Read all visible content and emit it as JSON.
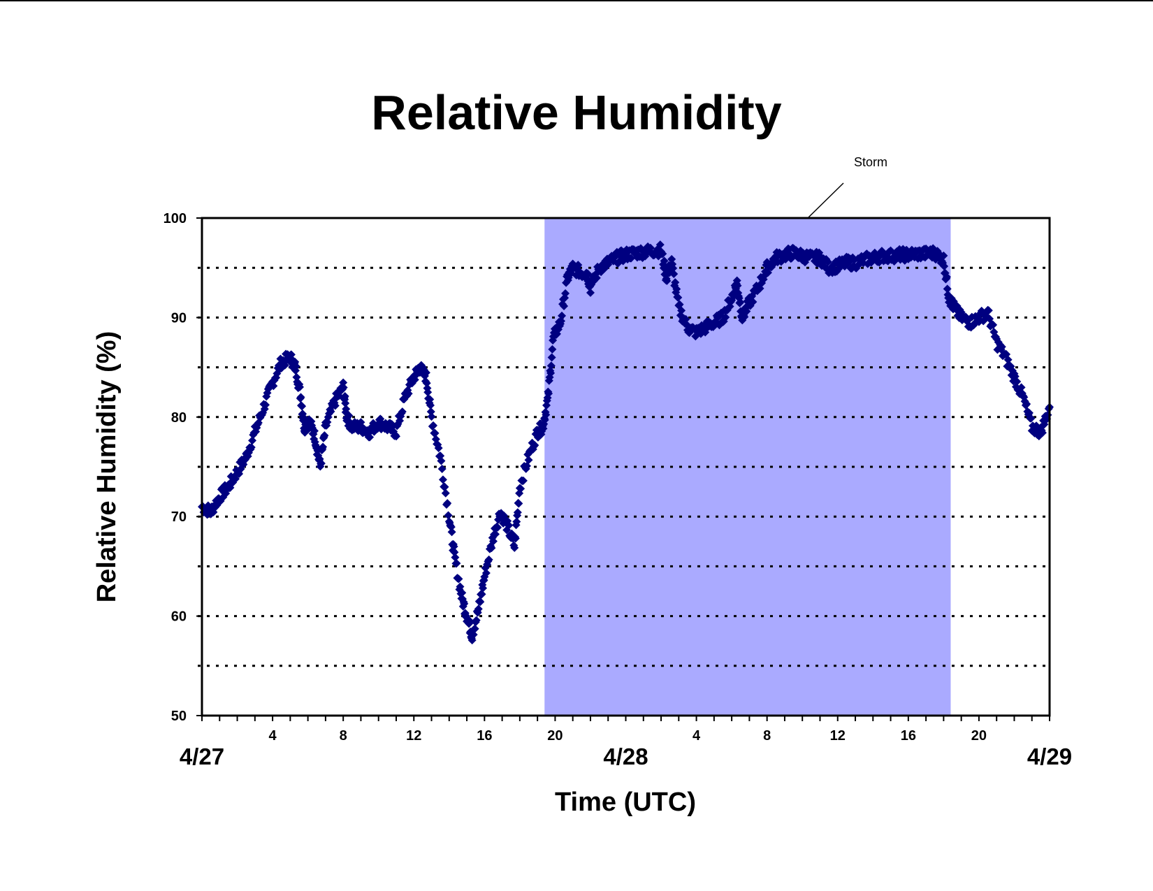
{
  "chart_data": {
    "type": "scatter",
    "title": "Relative Humidity",
    "xlabel": "Time (UTC)",
    "ylabel": "Relative Humidity (%)",
    "ylim": [
      50,
      100
    ],
    "xlim_hours": [
      0,
      48
    ],
    "yticks": [
      50,
      60,
      70,
      80,
      90,
      100
    ],
    "grid": "dotted horizontal every 5",
    "x_tick_labels": [
      {
        "hour": 4,
        "label": "4"
      },
      {
        "hour": 8,
        "label": "8"
      },
      {
        "hour": 12,
        "label": "12"
      },
      {
        "hour": 16,
        "label": "16"
      },
      {
        "hour": 20,
        "label": "20"
      },
      {
        "hour": 28,
        "label": "4"
      },
      {
        "hour": 32,
        "label": "8"
      },
      {
        "hour": 36,
        "label": "12"
      },
      {
        "hour": 40,
        "label": "16"
      },
      {
        "hour": 44,
        "label": "20"
      }
    ],
    "date_labels": [
      {
        "hour": 0,
        "label": "4/27"
      },
      {
        "hour": 24,
        "label": "4/28"
      },
      {
        "hour": 48,
        "label": "4/29"
      }
    ],
    "shaded_region": {
      "label": "Storm",
      "start_hour": 19.4,
      "end_hour": 42.4,
      "color": "#aaaaff"
    },
    "annotation": {
      "text": "Storm"
    },
    "series": [
      {
        "color": "#000080",
        "marker": "diamond",
        "x_hours": [
          0,
          0.5,
          1,
          1.5,
          2,
          2.5,
          3,
          3.5,
          4,
          4.5,
          5,
          5.3,
          5.6,
          5.8,
          6.1,
          6.4,
          6.7,
          7,
          7.5,
          8,
          8.2,
          8.5,
          9,
          9.5,
          10,
          10.5,
          11,
          11.5,
          12,
          12.3,
          12.7,
          13,
          13.5,
          14,
          14.3,
          14.7,
          15,
          15.3,
          15.7,
          16,
          16.5,
          16.9,
          17.3,
          17.7,
          18,
          18.5,
          19,
          19.3,
          19.6,
          19.9,
          20.3,
          20.7,
          21,
          21.5,
          21.8,
          22,
          22.5,
          23,
          23.5,
          24,
          24.5,
          25,
          25.5,
          26,
          26.3,
          26.6,
          27,
          27.5,
          28,
          28.5,
          29,
          29.5,
          30,
          30.3,
          30.6,
          31,
          31.5,
          32,
          32.5,
          33,
          33.5,
          34,
          34.5,
          35,
          35.5,
          36,
          36.5,
          37,
          37.5,
          38,
          38.5,
          39,
          39.5,
          40,
          40.5,
          41,
          41.5,
          42,
          42.3,
          42.6,
          43,
          43.5,
          44,
          44.5,
          45,
          45.5,
          46,
          46.5,
          47,
          47.5,
          48
        ],
        "y": [
          71,
          70.5,
          72,
          73,
          74.5,
          76,
          78.5,
          81,
          83.5,
          85.5,
          86,
          85,
          82,
          79,
          79.5,
          78,
          75,
          79,
          81.5,
          83,
          80,
          79,
          79,
          78.5,
          79.5,
          79,
          78.5,
          82,
          84,
          85,
          84,
          80,
          76,
          70,
          66,
          62,
          60,
          58,
          61,
          64,
          68,
          70.5,
          69,
          67,
          73,
          76,
          78.5,
          79,
          82,
          88,
          89.5,
          94,
          95,
          94.5,
          94.5,
          93,
          95,
          95.5,
          96,
          96.3,
          96.5,
          96.6,
          96.7,
          96.8,
          94,
          95.5,
          91,
          89,
          88.5,
          89,
          89.5,
          90,
          92,
          93.5,
          90,
          91.5,
          93,
          95,
          96,
          96.3,
          96.5,
          96.2,
          96,
          96,
          95,
          95.2,
          95.5,
          95.5,
          95.8,
          96,
          96.2,
          96.2,
          96.3,
          96.3,
          96.4,
          96.4,
          96.5,
          95.8,
          92,
          91,
          90,
          89.5,
          90,
          90.5,
          87.5,
          86,
          84,
          82,
          79,
          78.5,
          81
        ]
      }
    ]
  }
}
